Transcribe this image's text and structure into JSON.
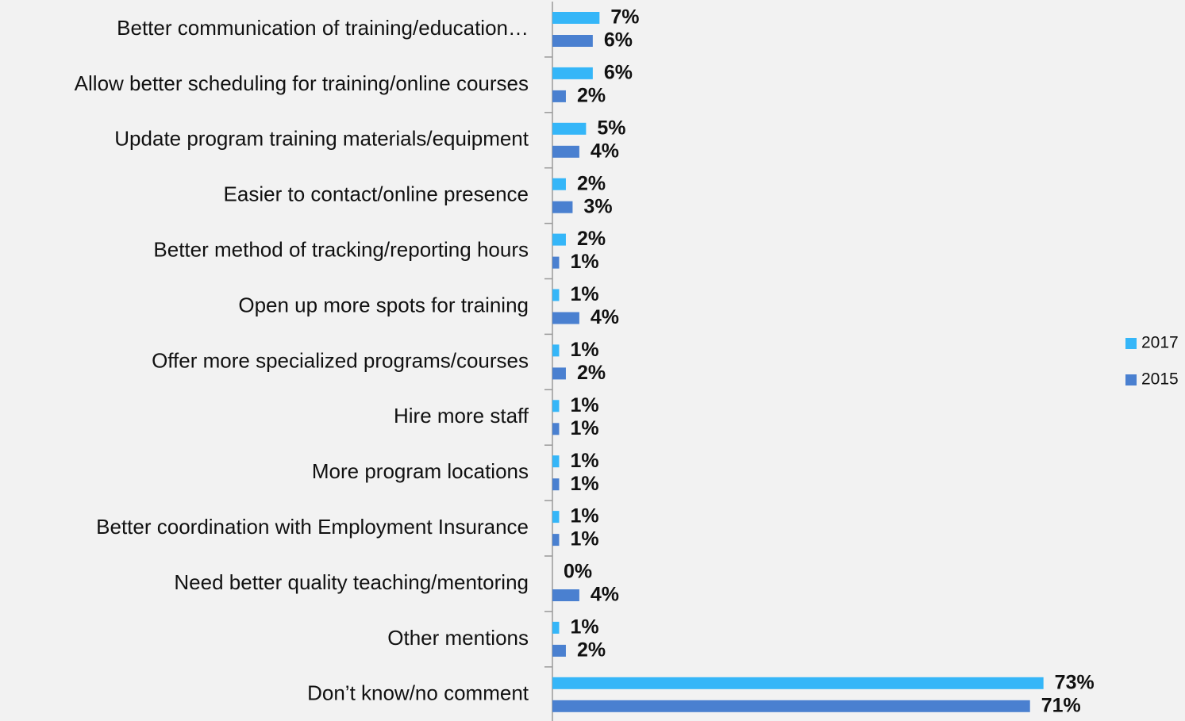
{
  "chart_data": {
    "type": "bar",
    "orientation": "horizontal",
    "categories": [
      "Better communication of training/education…",
      "Allow better scheduling for training/online courses",
      "Update program training materials/equipment",
      "Easier to contact/online presence",
      "Better method of tracking/reporting hours",
      "Open up more spots for training",
      "Offer more specialized programs/courses",
      "Hire more staff",
      "More program locations",
      "Better coordination with Employment Insurance",
      "Need better quality teaching/mentoring",
      "Other mentions",
      "Don’t know/no comment"
    ],
    "series": [
      {
        "name": "2017",
        "color": "#35b6f8",
        "values": [
          7,
          6,
          5,
          2,
          2,
          1,
          1,
          1,
          1,
          1,
          0,
          1,
          73
        ],
        "value_labels": [
          "7%",
          "6%",
          "5%",
          "2%",
          "2%",
          "1%",
          "1%",
          "1%",
          "1%",
          "1%",
          "0%",
          "1%",
          "73%"
        ]
      },
      {
        "name": "2015",
        "color": "#4a80d0",
        "values": [
          6,
          2,
          4,
          3,
          1,
          4,
          2,
          1,
          1,
          1,
          4,
          2,
          71
        ],
        "value_labels": [
          "6%",
          "2%",
          "4%",
          "3%",
          "1%",
          "4%",
          "2%",
          "1%",
          "1%",
          "1%",
          "4%",
          "2%",
          "71%"
        ]
      }
    ],
    "xlim": [
      0,
      80
    ],
    "legend": "right"
  }
}
